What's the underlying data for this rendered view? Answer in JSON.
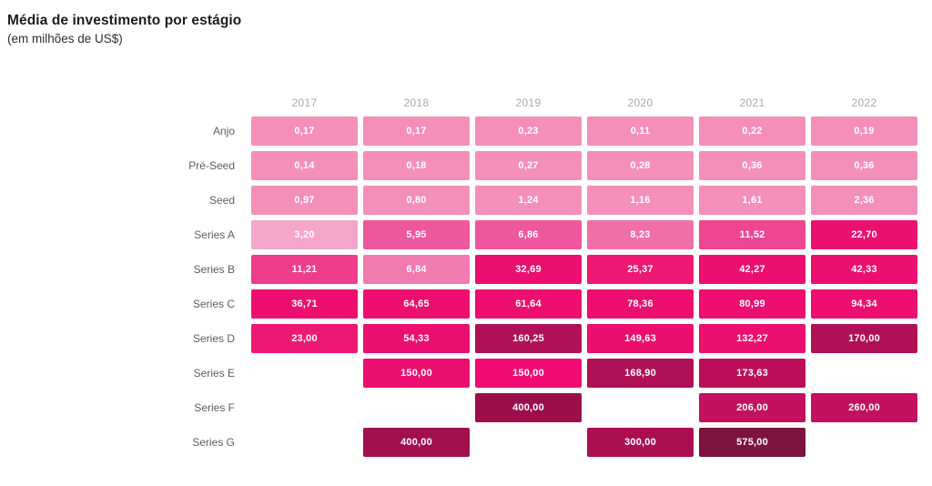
{
  "header": {
    "title": "Média de investimento por estágio",
    "subtitle": "(em milhões de US$)"
  },
  "chart_data": {
    "type": "heatmap",
    "title": "Média de investimento por estágio",
    "subtitle": "(em milhões de US$)",
    "unit": "milhões de US$",
    "decimal_separator": ",",
    "columns": [
      "2017",
      "2018",
      "2019",
      "2020",
      "2021",
      "2022"
    ],
    "rows": [
      {
        "label": "Anjo",
        "values": [
          0.17,
          0.17,
          0.23,
          0.11,
          0.22,
          0.19
        ],
        "labels": [
          "0,17",
          "0,17",
          "0,23",
          "0,11",
          "0,22",
          "0,19"
        ],
        "colors": [
          "#f48fb9",
          "#f48fb9",
          "#f48fb9",
          "#f48fb9",
          "#f48fb9",
          "#f48fb9"
        ]
      },
      {
        "label": "Pré-Seed",
        "values": [
          0.14,
          0.18,
          0.27,
          0.28,
          0.36,
          0.36
        ],
        "labels": [
          "0,14",
          "0,18",
          "0,27",
          "0,28",
          "0,36",
          "0,36"
        ],
        "colors": [
          "#f48fb9",
          "#f48fb9",
          "#f48fb9",
          "#f48fb9",
          "#f48fb9",
          "#f48fb9"
        ]
      },
      {
        "label": "Seed",
        "values": [
          0.97,
          0.8,
          1.24,
          1.16,
          1.61,
          2.36
        ],
        "labels": [
          "0,97",
          "0,80",
          "1,24",
          "1,16",
          "1,61",
          "2,36"
        ],
        "colors": [
          "#f48fb9",
          "#f48fb9",
          "#f48fb9",
          "#f48fb9",
          "#f48fb9",
          "#f48fb9"
        ]
      },
      {
        "label": "Series A",
        "values": [
          3.2,
          5.95,
          6.86,
          8.23,
          11.52,
          22.7
        ],
        "labels": [
          "3,20",
          "5,95",
          "6,86",
          "8,23",
          "11,52",
          "22,70"
        ],
        "colors": [
          "#f4a6ca",
          "#ef579d",
          "#ef579d",
          "#f06fa8",
          "#ee4691",
          "#ec1070"
        ]
      },
      {
        "label": "Series B",
        "values": [
          11.21,
          6.84,
          32.69,
          25.37,
          42.27,
          42.33
        ],
        "labels": [
          "11,21",
          "6,84",
          "32,69",
          "25,37",
          "42,27",
          "42,33"
        ],
        "colors": [
          "#ee3d8a",
          "#f17ab0",
          "#ec0f70",
          "#ed1874",
          "#ec0f70",
          "#ec0f70"
        ]
      },
      {
        "label": "Series C",
        "values": [
          36.71,
          64.65,
          61.64,
          78.36,
          80.99,
          94.34
        ],
        "labels": [
          "36,71",
          "64,65",
          "61,64",
          "78,36",
          "80,99",
          "94,34"
        ],
        "colors": [
          "#ec0f70",
          "#ec0f70",
          "#ec0f70",
          "#ec0f70",
          "#ec0f70",
          "#ec0f70"
        ]
      },
      {
        "label": "Series D",
        "values": [
          23.0,
          54.33,
          160.25,
          149.63,
          132.27,
          170.0
        ],
        "labels": [
          "23,00",
          "54,33",
          "160,25",
          "149,63",
          "132,27",
          "170,00"
        ],
        "colors": [
          "#ed1874",
          "#ec0f70",
          "#b01055",
          "#eb0e6e",
          "#ec0f70",
          "#b01055"
        ]
      },
      {
        "label": "Series E",
        "values": [
          null,
          150.0,
          150.0,
          168.9,
          173.63,
          null
        ],
        "labels": [
          null,
          "150,00",
          "150,00",
          "168,90",
          "173,63",
          null
        ],
        "colors": [
          null,
          "#ec0f70",
          "#f10c73",
          "#b01055",
          "#bb0f59",
          null
        ]
      },
      {
        "label": "Series F",
        "values": [
          null,
          null,
          400.0,
          null,
          206.0,
          260.0
        ],
        "labels": [
          null,
          null,
          "400,00",
          null,
          "206,00",
          "260,00"
        ],
        "colors": [
          null,
          null,
          "#9c0e4b",
          null,
          "#c31160",
          "#c31160"
        ]
      },
      {
        "label": "Series G",
        "values": [
          null,
          400.0,
          null,
          300.0,
          575.0,
          null
        ],
        "labels": [
          null,
          "400,00",
          null,
          "300,00",
          "575,00",
          null
        ],
        "colors": [
          null,
          "#a30f4e",
          null,
          "#aa0e51",
          "#7d1340",
          null
        ]
      }
    ],
    "palette": {
      "low": "#f48fb9",
      "mid": "#ec0f70",
      "high": "#7d1340"
    },
    "layout": {
      "legend": "none",
      "grid": "off",
      "cell_text_color": "#ffffff"
    }
  }
}
